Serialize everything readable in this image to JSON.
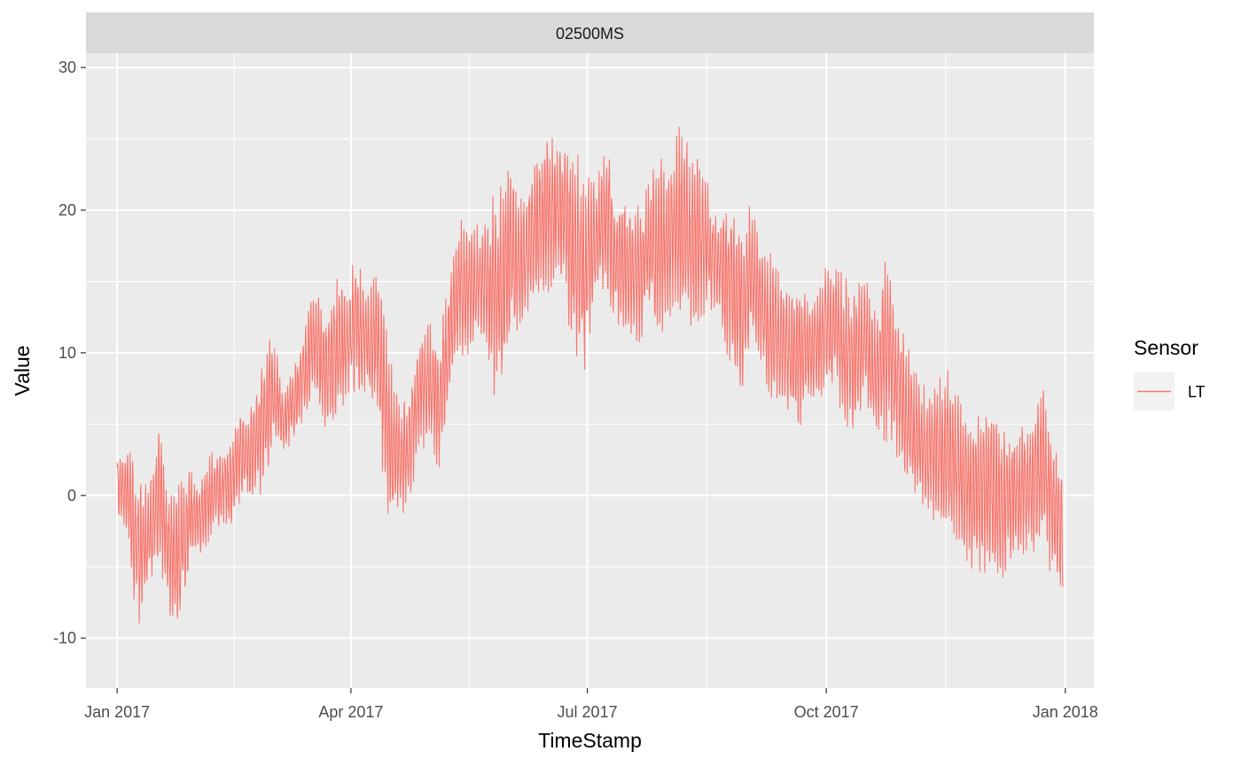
{
  "chart_data": {
    "type": "line",
    "facet_label": "02500MS",
    "xlabel": "TimeStamp",
    "ylabel": "Value",
    "x_ticks": [
      "Jan 2017",
      "Apr 2017",
      "Jul 2017",
      "Oct 2017",
      "Jan 2018"
    ],
    "x_tick_dates": [
      "2017-01-01",
      "2017-04-01",
      "2017-07-01",
      "2017-10-01",
      "2018-01-01"
    ],
    "x_range": [
      "2016-12-20",
      "2018-01-12"
    ],
    "y_ticks": [
      "-10",
      "0",
      "10",
      "20",
      "30"
    ],
    "y_tick_values": [
      -10,
      0,
      10,
      20,
      30
    ],
    "ylim": [
      -13.5,
      31
    ],
    "grid": true,
    "legend": {
      "title": "Sensor",
      "position": "right",
      "entries": [
        "LT"
      ]
    },
    "series": [
      {
        "name": "LT",
        "color": "#F8766D",
        "x": [
          "2017-01-01",
          "2017-01-05",
          "2017-01-09",
          "2017-01-13",
          "2017-01-17",
          "2017-01-21",
          "2017-01-25",
          "2017-01-29",
          "2017-02-02",
          "2017-02-06",
          "2017-02-10",
          "2017-02-14",
          "2017-02-18",
          "2017-02-22",
          "2017-02-26",
          "2017-03-02",
          "2017-03-06",
          "2017-03-10",
          "2017-03-14",
          "2017-03-18",
          "2017-03-22",
          "2017-03-26",
          "2017-03-30",
          "2017-04-03",
          "2017-04-07",
          "2017-04-11",
          "2017-04-15",
          "2017-04-19",
          "2017-04-23",
          "2017-04-27",
          "2017-05-01",
          "2017-05-05",
          "2017-05-09",
          "2017-05-13",
          "2017-05-17",
          "2017-05-21",
          "2017-05-25",
          "2017-05-29",
          "2017-06-02",
          "2017-06-06",
          "2017-06-10",
          "2017-06-14",
          "2017-06-18",
          "2017-06-22",
          "2017-06-26",
          "2017-06-30",
          "2017-07-04",
          "2017-07-08",
          "2017-07-12",
          "2017-07-16",
          "2017-07-20",
          "2017-07-24",
          "2017-07-28",
          "2017-08-01",
          "2017-08-05",
          "2017-08-09",
          "2017-08-13",
          "2017-08-17",
          "2017-08-21",
          "2017-08-25",
          "2017-08-29",
          "2017-09-02",
          "2017-09-06",
          "2017-09-10",
          "2017-09-14",
          "2017-09-18",
          "2017-09-22",
          "2017-09-26",
          "2017-09-30",
          "2017-10-04",
          "2017-10-08",
          "2017-10-12",
          "2017-10-16",
          "2017-10-20",
          "2017-10-24",
          "2017-10-28",
          "2017-11-01",
          "2017-11-05",
          "2017-11-09",
          "2017-11-13",
          "2017-11-17",
          "2017-11-21",
          "2017-11-25",
          "2017-11-29",
          "2017-12-03",
          "2017-12-07",
          "2017-12-11",
          "2017-12-15",
          "2017-12-19",
          "2017-12-23",
          "2017-12-27",
          "2017-12-31"
        ],
        "min": [
          -3,
          -4,
          -11.5,
          -8,
          -6,
          -10,
          -11,
          -6,
          -5,
          -4,
          -3,
          -3,
          -1,
          -2,
          -2,
          2,
          2,
          3,
          4,
          6,
          3,
          3,
          5,
          5,
          6,
          4,
          -5,
          -3,
          -3,
          2,
          2,
          0,
          6,
          8,
          8,
          10,
          5,
          4,
          9,
          10,
          11,
          12,
          12,
          12,
          7,
          6,
          13,
          12,
          10,
          9,
          9,
          10,
          9,
          9,
          10,
          9,
          10,
          11,
          10,
          7,
          5,
          8,
          8,
          4,
          5,
          3,
          3,
          5,
          5,
          6,
          3,
          3,
          5,
          3,
          1,
          1,
          -2,
          -2,
          -3,
          -4,
          -5,
          -6,
          -7,
          -8,
          -9,
          -8,
          -6,
          -5,
          -7,
          -4,
          -8,
          -9
        ],
        "max": [
          4,
          5,
          3,
          2,
          6.5,
          2,
          3,
          3,
          2,
          4,
          4,
          5,
          7,
          8,
          12,
          13,
          8,
          10,
          13,
          16,
          14,
          17,
          16,
          19.5,
          15,
          18,
          14,
          8,
          9,
          12,
          14,
          13,
          17,
          21,
          21,
          20,
          23,
          24,
          26,
          22,
          26,
          27,
          28.5,
          28,
          27,
          25,
          23,
          27,
          24,
          23,
          22,
          24,
          26,
          26,
          28,
          27,
          26,
          23,
          22,
          23,
          21,
          23,
          18,
          19,
          17,
          16,
          17,
          15,
          18,
          18,
          17,
          16,
          17,
          14,
          20,
          16,
          13,
          10,
          9,
          10,
          11,
          9,
          7,
          8,
          10,
          7,
          6,
          6,
          8,
          9.5,
          6,
          4.5
        ]
      }
    ]
  }
}
